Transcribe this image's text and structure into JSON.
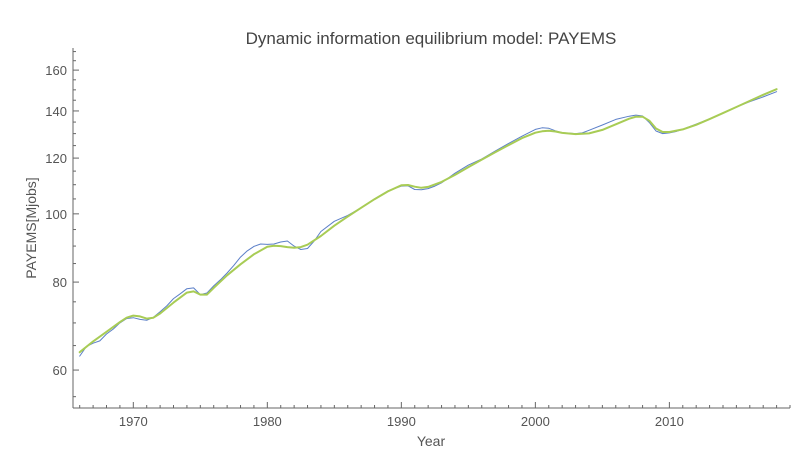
{
  "chart_data": {
    "type": "line",
    "title": "Dynamic information equilibrium model: PAYEMS",
    "xlabel": "Year",
    "ylabel": "PAYEMS[Mjobs]",
    "y_scale": "log",
    "xlim": [
      1965.5,
      2019.0
    ],
    "ylim": [
      53,
      172
    ],
    "x_ticks": [
      1970,
      1980,
      1990,
      2000,
      2010
    ],
    "x_tick_labels": [
      "1970",
      "1980",
      "1990",
      "2000",
      "2010"
    ],
    "y_ticks": [
      60,
      80,
      100,
      120,
      140,
      160
    ],
    "y_tick_labels": [
      "60",
      "80",
      "100",
      "120",
      "140",
      "160"
    ],
    "grid": false,
    "legend": "none",
    "series": [
      {
        "color": "#5b7fc8",
        "x": [
          1966,
          1966.5,
          1967,
          1967.5,
          1968,
          1968.5,
          1969,
          1969.5,
          1970,
          1970.5,
          1971,
          1971.5,
          1972,
          1972.5,
          1973,
          1973.5,
          1974,
          1974.5,
          1975,
          1975.5,
          1976,
          1976.5,
          1977,
          1977.5,
          1978,
          1978.5,
          1979,
          1979.5,
          1980,
          1980.5,
          1981,
          1981.5,
          1982,
          1982.5,
          1983,
          1983.5,
          1984,
          1985,
          1986,
          1987,
          1988,
          1989,
          1990,
          1990.5,
          1991,
          1991.5,
          1992,
          1992.5,
          1993,
          1994,
          1995,
          1996,
          1997,
          1998,
          1999,
          2000,
          2000.5,
          2001,
          2001.5,
          2002,
          2002.5,
          2003,
          2003.5,
          2004,
          2005,
          2006,
          2007,
          2007.5,
          2008,
          2008.5,
          2009,
          2009.5,
          2010,
          2010.5,
          2011,
          2012,
          2013,
          2014,
          2015,
          2016,
          2017,
          2018
        ],
        "y": [
          62.8,
          64.8,
          65.5,
          66.0,
          67.5,
          68.6,
          70.0,
          71.0,
          71.2,
          70.8,
          70.6,
          71.3,
          72.6,
          74.0,
          75.8,
          77.0,
          78.3,
          78.5,
          76.8,
          77.2,
          79.0,
          80.6,
          82.4,
          84.5,
          86.8,
          88.6,
          89.9,
          90.6,
          90.5,
          90.6,
          91.2,
          91.5,
          90.0,
          89.0,
          89.3,
          91.5,
          94.4,
          97.6,
          99.5,
          102.0,
          105.0,
          107.8,
          109.5,
          109.6,
          108.3,
          108.2,
          108.6,
          109.5,
          110.7,
          114.2,
          117.3,
          119.7,
          122.8,
          125.9,
          128.9,
          131.8,
          132.5,
          132.3,
          131.2,
          130.4,
          130.2,
          130.0,
          130.3,
          131.4,
          133.7,
          136.2,
          137.6,
          138.1,
          137.7,
          134.8,
          131.1,
          130.0,
          130.3,
          130.9,
          131.9,
          134.1,
          136.4,
          139.0,
          141.8,
          144.3,
          146.6,
          149.1
        ]
      },
      {
        "color": "#a8cc55",
        "x": [
          1966,
          1967,
          1968,
          1969,
          1969.5,
          1970,
          1970.5,
          1971,
          1971.5,
          1972,
          1973,
          1974,
          1974.5,
          1975,
          1975.5,
          1976,
          1977,
          1978,
          1979,
          1980,
          1980.5,
          1981,
          1981.5,
          1982,
          1982.5,
          1983,
          1984,
          1985,
          1986,
          1987,
          1988,
          1989,
          1990,
          1990.5,
          1991,
          1991.5,
          1992,
          1993,
          1994,
          1995,
          1996,
          1997,
          1998,
          1999,
          2000,
          2000.5,
          2001,
          2001.5,
          2002,
          2003,
          2004,
          2005,
          2006,
          2007,
          2007.5,
          2008,
          2008.5,
          2009,
          2009.5,
          2010,
          2011,
          2012,
          2013,
          2014,
          2015,
          2016,
          2017,
          2018
        ],
        "y": [
          63.6,
          65.9,
          68.0,
          70.2,
          71.2,
          71.7,
          71.5,
          71.0,
          71.2,
          72.2,
          74.8,
          77.3,
          77.6,
          76.8,
          76.8,
          78.5,
          81.8,
          84.8,
          87.6,
          89.8,
          90.1,
          90.0,
          89.7,
          89.5,
          89.7,
          90.4,
          93.0,
          96.2,
          99.1,
          102.0,
          104.9,
          107.6,
          109.8,
          109.9,
          109.3,
          108.9,
          109.2,
          111.0,
          113.6,
          116.5,
          119.4,
          122.3,
          125.2,
          128.1,
          130.4,
          131.0,
          131.2,
          130.9,
          130.3,
          129.8,
          130.1,
          131.6,
          134.0,
          136.5,
          137.4,
          137.4,
          135.6,
          132.2,
          130.7,
          130.7,
          131.8,
          133.8,
          136.3,
          139.0,
          141.8,
          144.7,
          147.6,
          150.3
        ]
      }
    ]
  }
}
